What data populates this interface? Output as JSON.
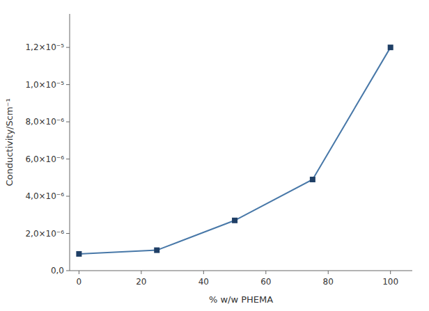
{
  "chart_data": {
    "type": "line",
    "x": [
      0,
      25,
      50,
      75,
      100
    ],
    "values": [
      9e-07,
      1.1e-06,
      2.7e-06,
      4.9e-06,
      1.2e-05
    ],
    "xlabel": "% w/w PHEMA",
    "ylabel": "Conductivity/Scm⁻¹",
    "marker": "square",
    "xlim": [
      -3,
      107
    ],
    "ylim": [
      0,
      1.38e-05
    ],
    "xticks": [
      0,
      20,
      40,
      60,
      80,
      100
    ],
    "yticks": [
      {
        "value": 0,
        "label": "0,0"
      },
      {
        "value": 2e-06,
        "label": "2,0×10⁻⁶"
      },
      {
        "value": 4e-06,
        "label": "4,0×10⁻⁶"
      },
      {
        "value": 6e-06,
        "label": "6,0×10⁻⁶"
      },
      {
        "value": 8e-06,
        "label": "8,0×10⁻⁶"
      },
      {
        "value": 1e-05,
        "label": "1,0×10⁻⁵"
      },
      {
        "value": 1.2e-05,
        "label": "1,2×10⁻⁵"
      }
    ],
    "grid": false
  }
}
